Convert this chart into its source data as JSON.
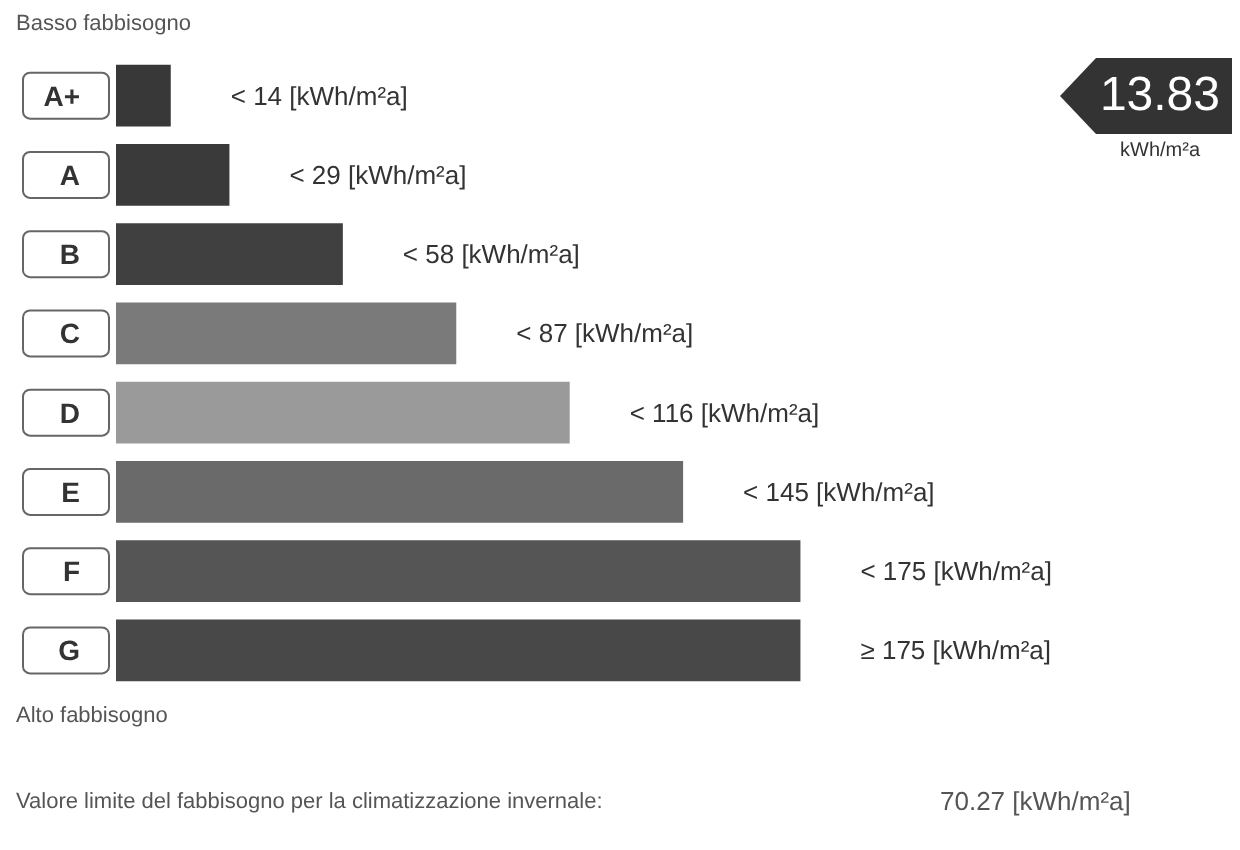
{
  "chart_data": {
    "type": "bar",
    "orientation": "horizontal",
    "tick_labels": "y",
    "categories": [
      "A+",
      "A",
      "B",
      "C",
      "D",
      "E",
      "F",
      "G"
    ],
    "values": [
      14,
      29,
      58,
      87,
      116,
      145,
      175,
      175
    ],
    "colors": [
      "#383838",
      "#3a3a3a",
      "#404040",
      "#7a7a7a",
      "#9a9a9a",
      "#6a6a6a",
      "#555555",
      "#484848"
    ],
    "value_labels": [
      "< 14 [kWh/m²a]",
      "< 29 [kWh/m²a]",
      "< 58 [kWh/m²a]",
      "< 87 [kWh/m²a]",
      "< 116 [kWh/m²a]",
      "< 145 [kWh/m²a]",
      "< 175 [kWh/m²a]",
      "≥ 175 [kWh/m²a]"
    ],
    "annotations": [
      "13.83 kWh/m²a",
      "Basso fabbisogno",
      "Alto fabbisogno",
      "Valore limite del fabbisogno per la climatizzazione invernale:",
      "70.27 [kWh/m²a]"
    ]
  }
}
